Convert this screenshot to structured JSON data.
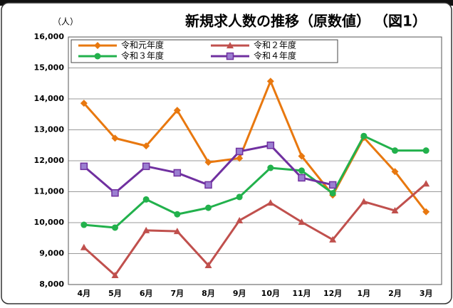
{
  "chart_data": {
    "type": "line",
    "title": "新規求人数の推移（原数値）",
    "figure_label": "（図1）",
    "y_unit": "（人）",
    "categories": [
      "4月",
      "5月",
      "6月",
      "7月",
      "8月",
      "9月",
      "10月",
      "11月",
      "12月",
      "1月",
      "2月",
      "3月"
    ],
    "series": [
      {
        "name": "令和元年度",
        "color": "#e8780f",
        "marker": "diamond",
        "values": [
          13860,
          12730,
          12480,
          13630,
          11950,
          12080,
          14570,
          12150,
          10890,
          12750,
          11650,
          10350
        ]
      },
      {
        "name": "令和２年度",
        "color": "#c0504d",
        "marker": "triangle",
        "values": [
          9200,
          8300,
          9750,
          9720,
          8620,
          10070,
          10640,
          10020,
          9450,
          10680,
          10390,
          11260
        ]
      },
      {
        "name": "令和３年度",
        "color": "#22b14c",
        "marker": "circle",
        "values": [
          9930,
          9840,
          10750,
          10270,
          10480,
          10830,
          11770,
          11680,
          10950,
          12800,
          12330,
          12330
        ]
      },
      {
        "name": "令和４年度",
        "color": "#7030a0",
        "marker": "square",
        "values": [
          11820,
          10960,
          11820,
          11610,
          11220,
          12300,
          12500,
          11450,
          11220,
          null,
          null,
          null
        ]
      }
    ],
    "ylim": [
      8000,
      16000
    ],
    "yticks": [
      {
        "value": 8000,
        "label": "8,000"
      },
      {
        "value": 9000,
        "label": "9,000"
      },
      {
        "value": 10000,
        "label": "10,000"
      },
      {
        "value": 11000,
        "label": "11,000"
      },
      {
        "value": 12000,
        "label": "12,000"
      },
      {
        "value": 13000,
        "label": "13,000"
      },
      {
        "value": 14000,
        "label": "14,000"
      },
      {
        "value": 15000,
        "label": "15,000"
      },
      {
        "value": 16000,
        "label": "16,000"
      }
    ],
    "grid": true
  }
}
